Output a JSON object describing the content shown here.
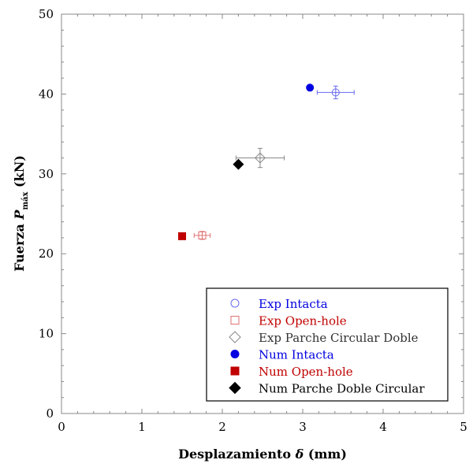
{
  "chart_data": {
    "type": "scatter",
    "title": "",
    "xlabel": "Desplazamiento δ (mm)",
    "xlabel_parts": {
      "main": "Desplazamiento ",
      "symbol": "δ",
      "unit": " (mm)"
    },
    "ylabel": "Fuerza P máx (kN)",
    "ylabel_parts": {
      "main": "Fuerza ",
      "symbol": "P",
      "sub": "máx",
      "unit": " (kN)"
    },
    "xlim": [
      0,
      5
    ],
    "ylim": [
      0,
      50
    ],
    "xticks": [
      0,
      1,
      2,
      3,
      4,
      5
    ],
    "yticks": [
      0,
      10,
      20,
      30,
      40,
      50
    ],
    "grid": false,
    "legend_position": "bottom-right",
    "series": [
      {
        "name": "Exp Intacta",
        "marker": "circle-open",
        "color": "#6a6af0",
        "label_color": "#0000e0",
        "x": [
          3.41
        ],
        "y": [
          40.2
        ],
        "xerr": [
          0.23
        ],
        "yerr": [
          0.8
        ]
      },
      {
        "name": "Exp Open-hole",
        "marker": "square-open",
        "color": "#e07070",
        "label_color": "#c00000",
        "x": [
          1.75
        ],
        "y": [
          22.3
        ],
        "xerr": [
          0.1
        ],
        "yerr": [
          0.5
        ]
      },
      {
        "name": "Exp Parche Circular Doble",
        "marker": "diamond-open",
        "color": "#888888",
        "label_color": "#333333",
        "x": [
          2.47
        ],
        "y": [
          32.0
        ],
        "xerr": [
          0.3
        ],
        "yerr": [
          1.2
        ]
      },
      {
        "name": "Num Intacta",
        "marker": "circle-filled",
        "color": "#0000e0",
        "label_color": "#0000e0",
        "x": [
          3.09
        ],
        "y": [
          40.8
        ]
      },
      {
        "name": "Num Open-hole",
        "marker": "square-filled",
        "color": "#c00000",
        "label_color": "#c00000",
        "x": [
          1.5
        ],
        "y": [
          22.2
        ]
      },
      {
        "name": "Num Parche Doble Circular",
        "marker": "diamond-filled",
        "color": "#000000",
        "label_color": "#000000",
        "x": [
          2.2
        ],
        "y": [
          31.2
        ]
      }
    ]
  }
}
